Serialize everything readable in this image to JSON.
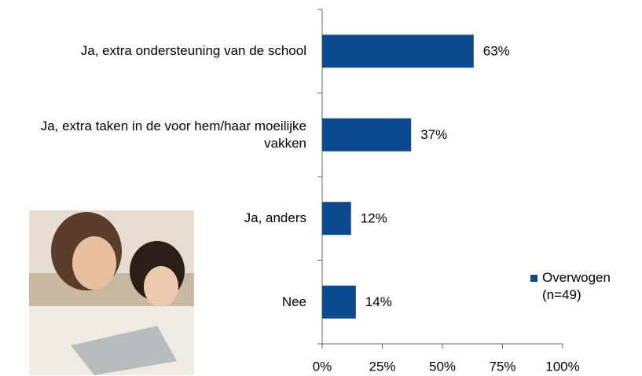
{
  "chart_data": {
    "type": "bar",
    "orientation": "horizontal",
    "categories": [
      "Ja, extra ondersteuning van de school",
      "Ja, extra taken in de voor hem/haar moeilijke vakken",
      "Ja, anders",
      "Nee"
    ],
    "series": [
      {
        "name": "Overwogen (n=49)",
        "color": "#0b4a8f",
        "values": [
          63,
          37,
          12,
          14
        ],
        "value_labels": [
          "63%",
          "37%",
          "12%",
          "14%"
        ]
      }
    ],
    "xlim": [
      0,
      100
    ],
    "xticks": [
      {
        "value": 0,
        "label": "0%"
      },
      {
        "value": 25,
        "label": "25%"
      },
      {
        "value": 50,
        "label": "50%"
      },
      {
        "value": 75,
        "label": "75%"
      },
      {
        "value": 100,
        "label": "100%"
      }
    ],
    "grid": false,
    "legend": "right"
  }
}
